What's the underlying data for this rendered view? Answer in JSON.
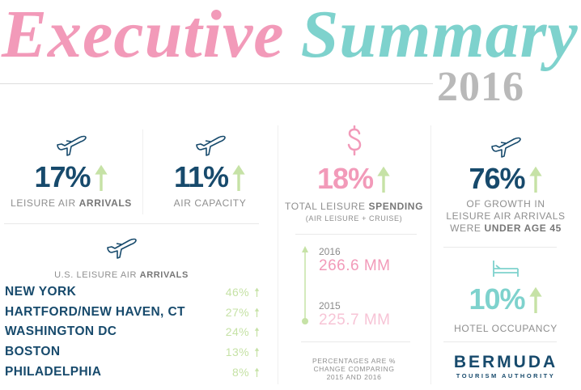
{
  "header": {
    "title_part1": "Executive",
    "title_part2": "Summary",
    "year": "2016"
  },
  "colors": {
    "pink": "#f29ab9",
    "teal": "#7ed2cd",
    "navy": "#174a6c",
    "green": "#c6e2a6",
    "gray": "#b9b9b9"
  },
  "stats": {
    "leisure_arrivals": {
      "value": "17%",
      "label_normal": "LEISURE AIR ",
      "label_bold": "ARRIVALS",
      "icon": "plane-icon"
    },
    "air_capacity": {
      "value": "11%",
      "label": "AIR CAPACITY",
      "icon": "plane-icon"
    },
    "spending": {
      "value": "18%",
      "label_normal": "TOTAL LEISURE ",
      "label_bold": "SPENDING",
      "sub": "(AIR LEISURE + CRUISE)",
      "icon": "dollar-icon"
    },
    "under45": {
      "value": "76%",
      "line1": "OF GROWTH IN",
      "line2": "LEISURE AIR ARRIVALS",
      "line3_normal": "WERE ",
      "line3_bold": "UNDER AGE 45",
      "icon": "plane-icon"
    },
    "hotel": {
      "value": "10%",
      "label": "HOTEL OCCUPANCY",
      "icon": "bed-icon"
    }
  },
  "us_arrivals": {
    "title_normal": "U.S. LEISURE AIR ",
    "title_bold": "ARRIVALS",
    "rows": [
      {
        "city": "NEW YORK",
        "value": "46%"
      },
      {
        "city": "HARTFORD/NEW HAVEN, CT",
        "value": "27%"
      },
      {
        "city": "WASHINGTON DC",
        "value": "24%"
      },
      {
        "city": "BOSTON",
        "value": "13%"
      },
      {
        "city": "PHILADELPHIA",
        "value": "8%"
      }
    ]
  },
  "spending_compare": {
    "y2016": "2016",
    "v2016": "266.6 MM",
    "y2015": "2015",
    "v2015": "225.7 MM"
  },
  "footnote": {
    "l1": "PERCENTAGES ARE %",
    "l2": "CHANGE COMPARING",
    "l3": "2015 AND 2016"
  },
  "logo": {
    "name": "BERMUDA",
    "sub": "TOURISM AUTHORITY"
  }
}
